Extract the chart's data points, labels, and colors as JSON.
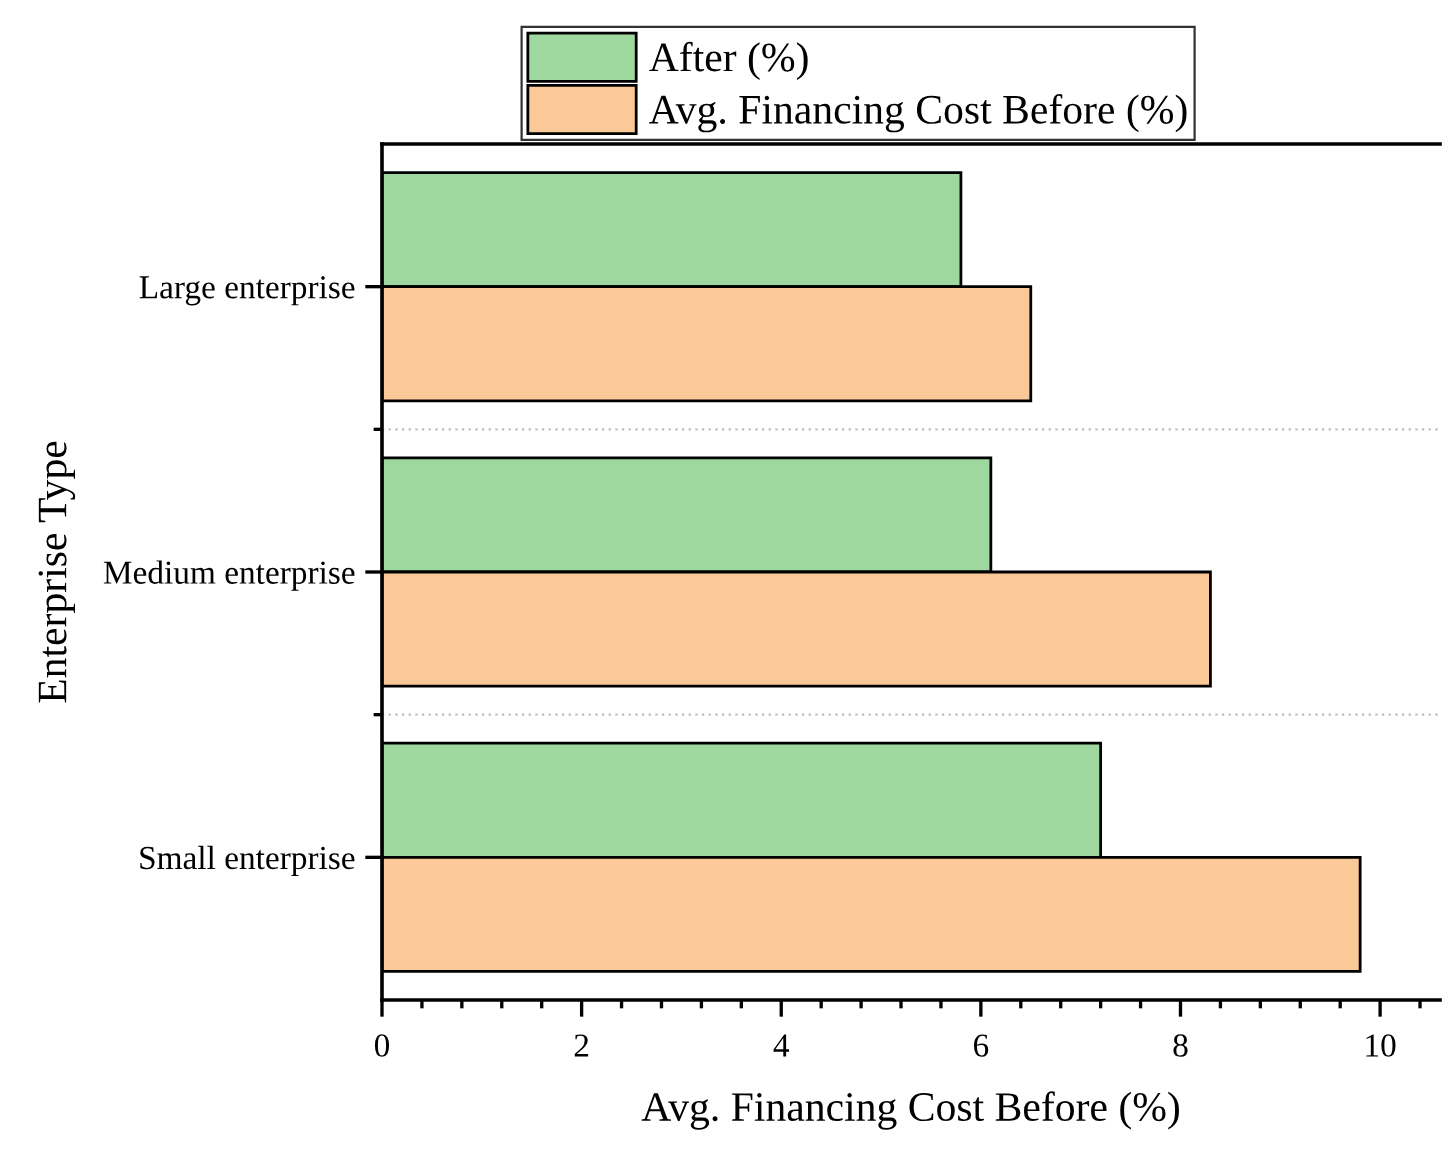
{
  "chart_data": {
    "type": "bar",
    "orientation": "horizontal",
    "xlabel": "Avg. Financing Cost Before (%)",
    "ylabel": "Enterprise Type",
    "categories": [
      "Large enterprise",
      "Medium enterprise",
      "Small enterprise"
    ],
    "series": [
      {
        "name": "After (%)",
        "color": "#9fd89e",
        "values": [
          5.8,
          6.1,
          7.2
        ]
      },
      {
        "name": "Avg. Financing Cost Before (%)",
        "color": "#fbc898",
        "values": [
          6.5,
          8.3,
          9.8
        ]
      }
    ],
    "xlim": [
      0,
      10.6
    ],
    "xticks": [
      0,
      2,
      4,
      6,
      8,
      10
    ],
    "grid": "y",
    "legend": "top"
  }
}
